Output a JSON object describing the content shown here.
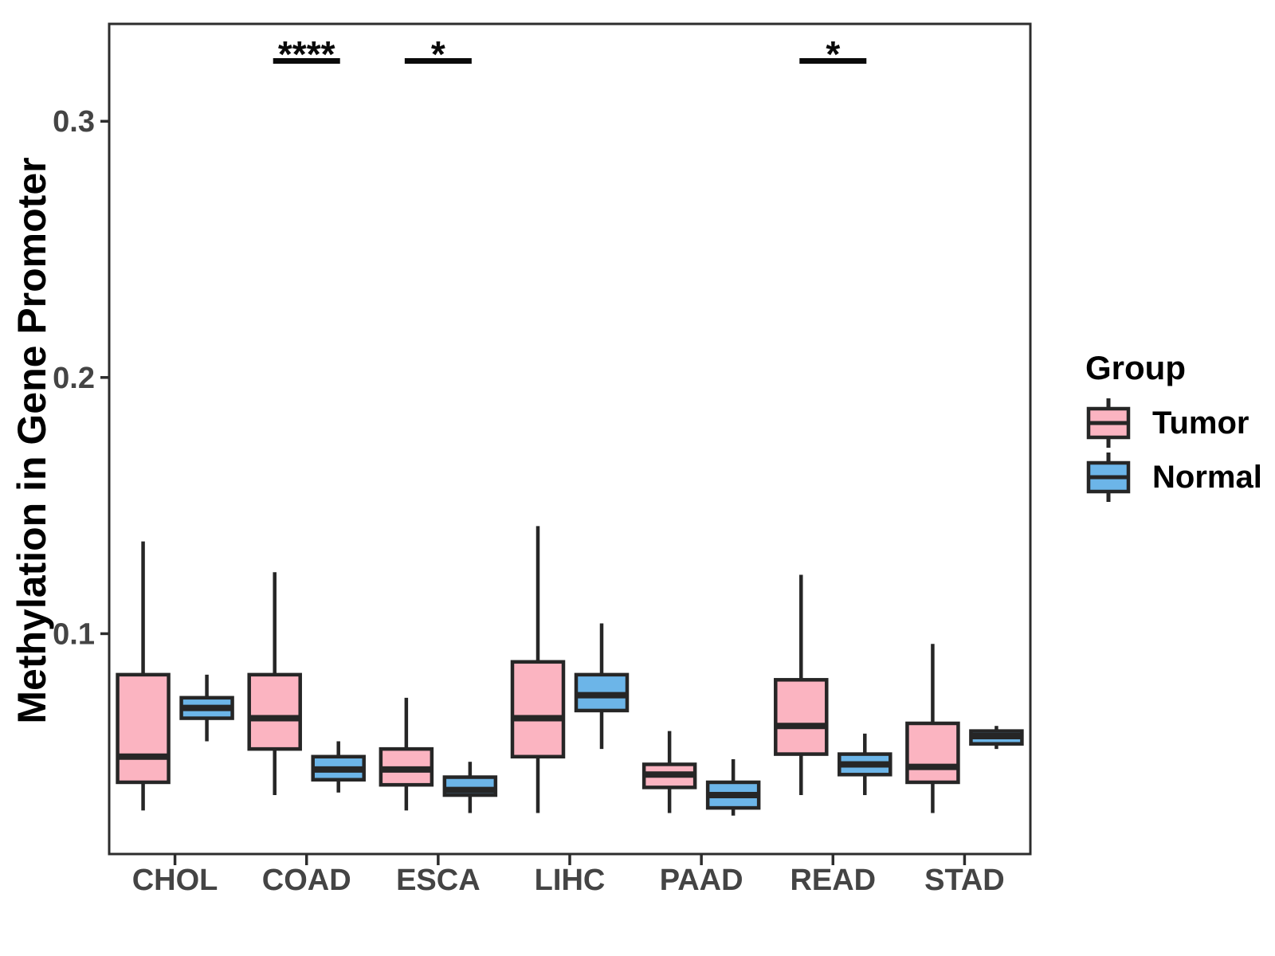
{
  "figure": {
    "background": "#ffffff"
  },
  "style": {
    "box_border": "#262626",
    "axis_line_color": "#2d2d2d",
    "tick_label_color": "#444444",
    "axis_title_color": "#000000",
    "significance_color": "#0a0a0a"
  },
  "chart_data": {
    "type": "boxplot",
    "title": "",
    "xlabel": "",
    "ylabel": "Methylation in Gene Promoter",
    "grid": false,
    "ylim": [
      0.014,
      0.338
    ],
    "yticks": [
      0.1,
      0.2,
      0.3
    ],
    "categories": [
      "CHOL",
      "COAD",
      "ESCA",
      "LIHC",
      "PAAD",
      "READ",
      "STAD"
    ],
    "legend": {
      "title": "Group",
      "position": "right"
    },
    "series": [
      {
        "name": "Tumor",
        "color": "#FBB4C1",
        "values": [
          {
            "min": 0.031,
            "q1": 0.042,
            "median": 0.052,
            "q3": 0.084,
            "max": 0.136
          },
          {
            "min": 0.037,
            "q1": 0.055,
            "median": 0.067,
            "q3": 0.084,
            "max": 0.124
          },
          {
            "min": 0.031,
            "q1": 0.041,
            "median": 0.047,
            "q3": 0.055,
            "max": 0.075
          },
          {
            "min": 0.03,
            "q1": 0.052,
            "median": 0.067,
            "q3": 0.089,
            "max": 0.142
          },
          {
            "min": 0.03,
            "q1": 0.04,
            "median": 0.045,
            "q3": 0.049,
            "max": 0.062
          },
          {
            "min": 0.037,
            "q1": 0.053,
            "median": 0.064,
            "q3": 0.082,
            "max": 0.123
          },
          {
            "min": 0.03,
            "q1": 0.042,
            "median": 0.048,
            "q3": 0.065,
            "max": 0.096
          }
        ]
      },
      {
        "name": "Normal",
        "color": "#6CB5E8",
        "values": [
          {
            "min": 0.058,
            "q1": 0.067,
            "median": 0.071,
            "q3": 0.075,
            "max": 0.084
          },
          {
            "min": 0.038,
            "q1": 0.043,
            "median": 0.047,
            "q3": 0.052,
            "max": 0.058
          },
          {
            "min": 0.03,
            "q1": 0.037,
            "median": 0.039,
            "q3": 0.044,
            "max": 0.05
          },
          {
            "min": 0.055,
            "q1": 0.07,
            "median": 0.076,
            "q3": 0.084,
            "max": 0.104
          },
          {
            "min": 0.029,
            "q1": 0.032,
            "median": 0.037,
            "q3": 0.042,
            "max": 0.051
          },
          {
            "min": 0.037,
            "q1": 0.045,
            "median": 0.049,
            "q3": 0.053,
            "max": 0.061
          },
          {
            "min": 0.055,
            "q1": 0.057,
            "median": 0.06,
            "q3": 0.062,
            "max": 0.064
          }
        ]
      }
    ],
    "significance": [
      {
        "category": "COAD",
        "label": "****"
      },
      {
        "category": "ESCA",
        "label": "*"
      },
      {
        "category": "READ",
        "label": "*"
      }
    ]
  }
}
